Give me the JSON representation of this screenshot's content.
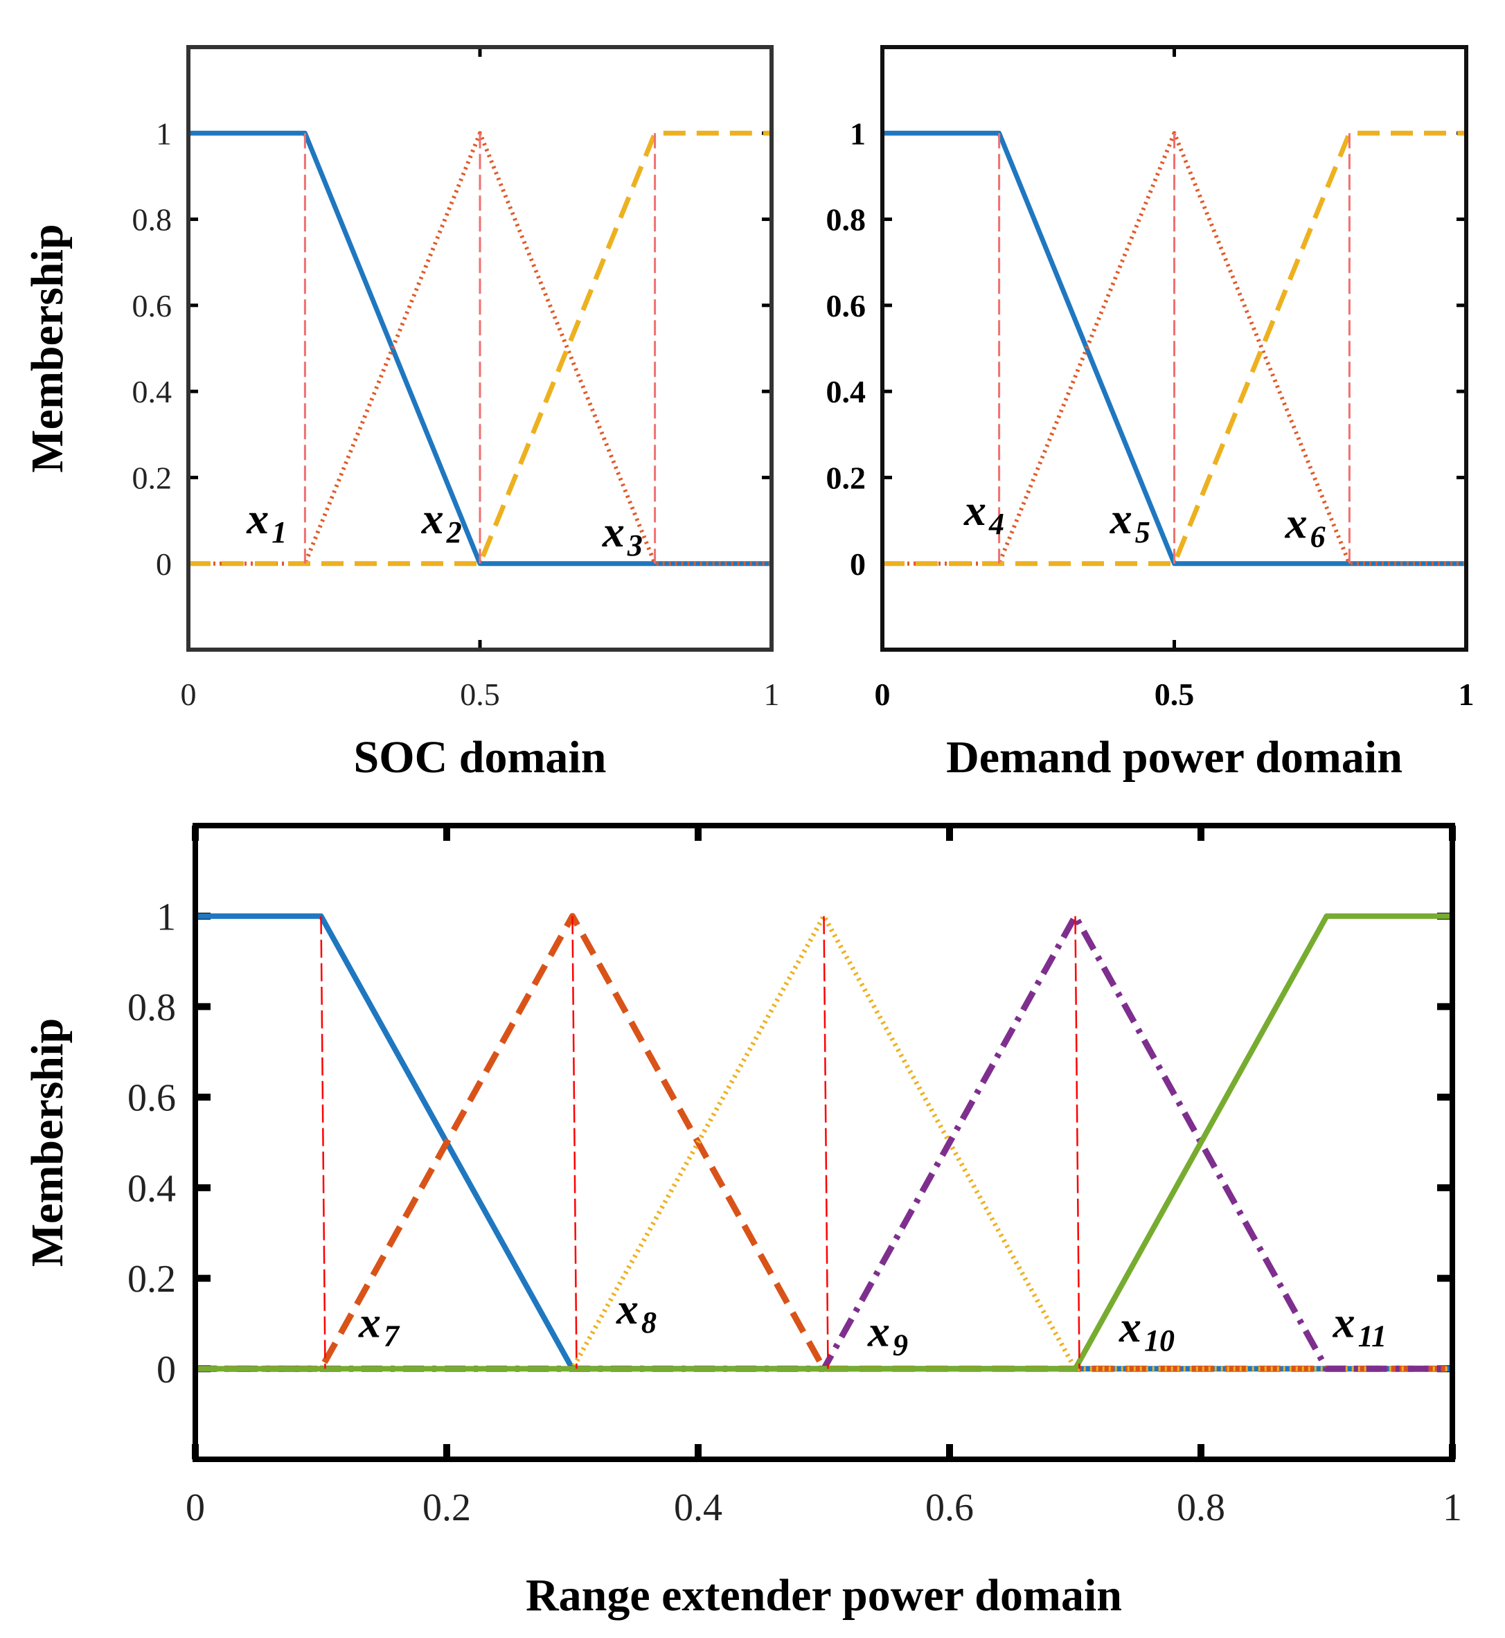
{
  "chart_data": [
    {
      "id": "soc",
      "type": "line",
      "xlabel": "SOC domain",
      "ylabel": "Membership",
      "xlim": [
        0,
        1
      ],
      "ylim": [
        -0.2,
        1.2
      ],
      "xticks": [
        0,
        0.5,
        1
      ],
      "xtick_labels": [
        "0",
        "0.5",
        "1"
      ],
      "yticks": [
        0,
        0.2,
        0.4,
        0.6,
        0.8,
        1
      ],
      "ytick_labels": [
        "0",
        "0.2",
        "0.4",
        "0.6",
        "0.8",
        "1"
      ],
      "bold_ticks": false,
      "series": [
        {
          "name": "mf1",
          "style": "solid",
          "color": "#1f77c0",
          "x": [
            0,
            0.2,
            0.5,
            1
          ],
          "y": [
            1,
            1,
            0,
            0
          ]
        },
        {
          "name": "mf2",
          "style": "dotted",
          "color": "#e05a28",
          "x": [
            0,
            0.2,
            0.5,
            0.8,
            1
          ],
          "y": [
            0,
            0,
            1,
            0,
            0
          ]
        },
        {
          "name": "mf3",
          "style": "dashed",
          "color": "#edb120",
          "x": [
            0,
            0.5,
            0.8,
            1
          ],
          "y": [
            0,
            0,
            1,
            1
          ]
        }
      ],
      "guides_x": [
        0.2,
        0.5,
        0.8
      ],
      "annotations": [
        {
          "base": "x",
          "sub": "1",
          "x": 0.1,
          "y": 0.07
        },
        {
          "base": "x",
          "sub": "2",
          "x": 0.4,
          "y": 0.07
        },
        {
          "base": "x",
          "sub": "3",
          "x": 0.71,
          "y": 0.04
        }
      ]
    },
    {
      "id": "demand",
      "type": "line",
      "xlabel": "Demand power domain",
      "ylabel": "",
      "xlim": [
        0,
        1
      ],
      "ylim": [
        -0.2,
        1.2
      ],
      "xticks": [
        0,
        0.5,
        1
      ],
      "xtick_labels": [
        "0",
        "0.5",
        "1"
      ],
      "yticks": [
        0,
        0.2,
        0.4,
        0.6,
        0.8,
        1
      ],
      "ytick_labels": [
        "0",
        "0.2",
        "0.4",
        "0.6",
        "0.8",
        "1"
      ],
      "bold_ticks": true,
      "series": [
        {
          "name": "mf1",
          "style": "solid",
          "color": "#1f77c0",
          "x": [
            0,
            0.2,
            0.5,
            1
          ],
          "y": [
            1,
            1,
            0,
            0
          ]
        },
        {
          "name": "mf2",
          "style": "dotted",
          "color": "#e05a28",
          "x": [
            0,
            0.2,
            0.5,
            0.8,
            1
          ],
          "y": [
            0,
            0,
            1,
            0,
            0
          ]
        },
        {
          "name": "mf3",
          "style": "dashed",
          "color": "#edb120",
          "x": [
            0,
            0.5,
            0.8,
            1
          ],
          "y": [
            0,
            0,
            1,
            1
          ]
        }
      ],
      "guides_x": [
        0.2,
        0.5,
        0.8
      ],
      "annotations": [
        {
          "base": "x",
          "sub": "4",
          "x": 0.14,
          "y": 0.09
        },
        {
          "base": "x",
          "sub": "5",
          "x": 0.39,
          "y": 0.07
        },
        {
          "base": "x",
          "sub": "6",
          "x": 0.69,
          "y": 0.06
        }
      ]
    },
    {
      "id": "range",
      "type": "line",
      "xlabel": "Range extender power domain",
      "ylabel": "Membership",
      "xlim": [
        0,
        1
      ],
      "ylim": [
        -0.2,
        1.2
      ],
      "xticks": [
        0,
        0.2,
        0.4,
        0.6,
        0.8,
        1
      ],
      "xtick_labels": [
        "0",
        "0.2",
        "0.4",
        "0.6",
        "0.8",
        "1"
      ],
      "yticks": [
        0,
        0.2,
        0.4,
        0.6,
        0.8,
        1
      ],
      "ytick_labels": [
        "0",
        "0.2",
        "0.4",
        "0.6",
        "0.8",
        "1"
      ],
      "bold_ticks": false,
      "series": [
        {
          "name": "mf1",
          "style": "solid",
          "color": "#1f77c0",
          "x": [
            0,
            0.1,
            0.3,
            1
          ],
          "y": [
            1,
            1,
            0,
            0
          ]
        },
        {
          "name": "mf2",
          "style": "dashed",
          "color": "#d95319",
          "x": [
            0,
            0.1,
            0.3,
            0.5,
            1
          ],
          "y": [
            0,
            0,
            1,
            0,
            0
          ]
        },
        {
          "name": "mf3",
          "style": "dotted",
          "color": "#edb120",
          "x": [
            0,
            0.3,
            0.5,
            0.7,
            1
          ],
          "y": [
            0,
            0,
            1,
            0,
            0
          ]
        },
        {
          "name": "mf4",
          "style": "dashdot",
          "color": "#7e2f8e",
          "x": [
            0,
            0.5,
            0.7,
            0.9,
            1
          ],
          "y": [
            0,
            0,
            1,
            0,
            0
          ]
        },
        {
          "name": "mf5",
          "style": "solid",
          "color": "#77ac30",
          "x": [
            0,
            0.7,
            0.9,
            1
          ],
          "y": [
            0,
            0,
            1,
            1
          ]
        }
      ],
      "guides_x": [
        0.1,
        0.3,
        0.5,
        0.7
      ],
      "annotations": [
        {
          "base": "x",
          "sub": "7",
          "x": 0.13,
          "y": 0.07
        },
        {
          "base": "x",
          "sub": "8",
          "x": 0.335,
          "y": 0.1
        },
        {
          "base": "x",
          "sub": "9",
          "x": 0.535,
          "y": 0.05
        },
        {
          "base": "x",
          "sub": "10",
          "x": 0.735,
          "y": 0.06
        },
        {
          "base": "x",
          "sub": "11",
          "x": 0.905,
          "y": 0.07
        }
      ]
    }
  ]
}
